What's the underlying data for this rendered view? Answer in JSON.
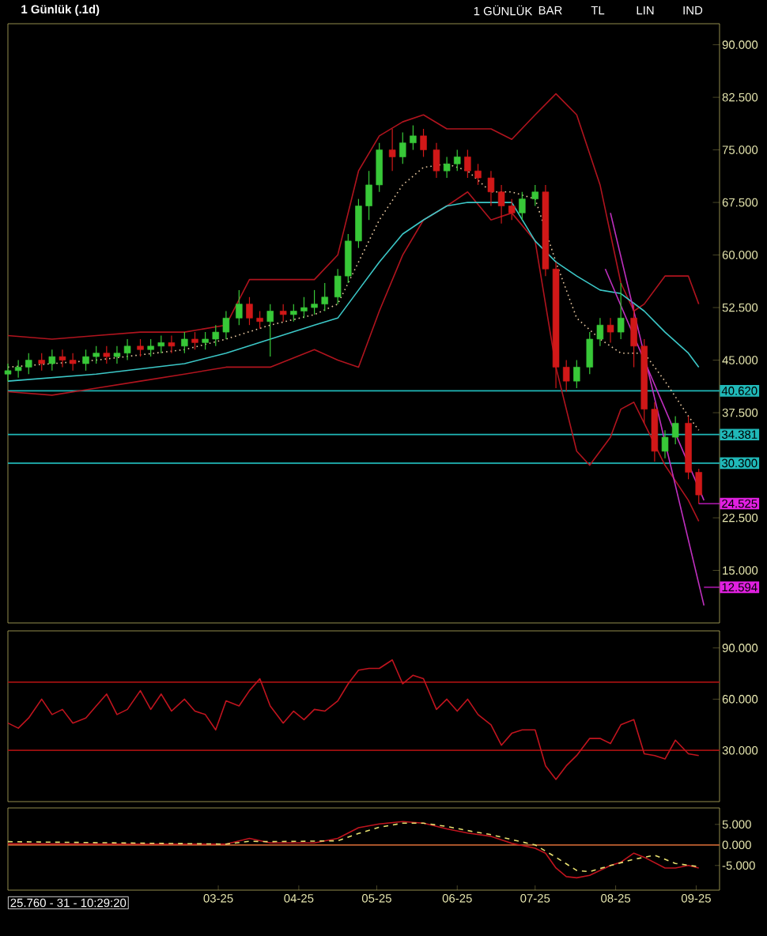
{
  "chart_data": [
    {
      "type": "candlestick",
      "title": "1 Günlük (.1d)",
      "annotations": [
        "1 GÜNLÜK",
        "BAR",
        "TL",
        "LIN",
        "IND",
        {
          "text": "24.525",
          "x": "2025-09-02",
          "y": 24.525
        },
        {
          "text": "12.594",
          "x": "2025-09-04",
          "y": 12.594
        }
      ],
      "x": [
        "2024-12-10",
        "2024-12-14",
        "2024-12-18",
        "2024-12-23",
        "2024-12-27",
        "2024-12-31",
        "2025-01-04",
        "2025-01-09",
        "2025-01-13",
        "2025-01-17",
        "2025-01-21",
        "2025-01-25",
        "2025-01-30",
        "2025-02-03",
        "2025-02-07",
        "2025-02-11",
        "2025-02-16",
        "2025-02-20",
        "2025-02-24",
        "2025-02-28",
        "2025-03-04",
        "2025-03-09",
        "2025-03-13",
        "2025-03-17",
        "2025-03-21",
        "2025-03-26",
        "2025-03-30",
        "2025-04-03",
        "2025-04-07",
        "2025-04-11",
        "2025-04-16",
        "2025-04-20",
        "2025-04-24",
        "2025-04-28",
        "2025-05-02",
        "2025-05-07",
        "2025-05-11",
        "2025-05-15",
        "2025-05-19",
        "2025-05-24",
        "2025-05-28",
        "2025-06-01",
        "2025-06-05",
        "2025-06-09",
        "2025-06-14",
        "2025-06-18",
        "2025-06-22",
        "2025-06-26",
        "2025-07-01",
        "2025-07-05",
        "2025-07-09",
        "2025-07-13",
        "2025-07-17",
        "2025-07-22",
        "2025-07-26",
        "2025-07-30",
        "2025-08-03",
        "2025-08-08",
        "2025-08-12",
        "2025-08-16",
        "2025-08-20",
        "2025-08-24",
        "2025-08-29",
        "2025-09-02"
      ],
      "ohlc": [
        [
          43,
          44.5,
          42,
          43.5
        ],
        [
          43.5,
          45,
          42.5,
          44
        ],
        [
          44,
          46,
          43,
          45
        ],
        [
          45,
          46,
          43.5,
          44.5
        ],
        [
          44.5,
          46.5,
          43.5,
          45.5
        ],
        [
          45.5,
          46.5,
          44,
          45
        ],
        [
          45,
          46,
          43.5,
          44.5
        ],
        [
          44.5,
          46.5,
          43.5,
          45.5
        ],
        [
          45.5,
          47,
          44.5,
          46
        ],
        [
          46,
          47,
          44.5,
          45.5
        ],
        [
          45.5,
          47,
          44.5,
          46
        ],
        [
          46,
          48,
          45,
          47
        ],
        [
          47,
          48,
          45.5,
          46.5
        ],
        [
          46.5,
          48,
          45.5,
          47
        ],
        [
          47,
          48.5,
          46,
          47.5
        ],
        [
          47.5,
          48.5,
          46,
          47
        ],
        [
          47,
          49,
          46,
          48
        ],
        [
          48,
          49,
          46.5,
          47.5
        ],
        [
          47.5,
          49,
          46.5,
          48
        ],
        [
          48,
          50,
          47,
          49
        ],
        [
          49,
          52,
          48,
          51
        ],
        [
          51,
          55,
          50,
          53
        ],
        [
          53,
          54,
          50,
          51
        ],
        [
          51,
          52,
          49.5,
          50.5
        ],
        [
          50.5,
          53,
          45.5,
          52
        ],
        [
          52,
          53,
          50.5,
          51.5
        ],
        [
          51.5,
          53,
          50.5,
          52
        ],
        [
          52,
          54,
          51,
          52.5
        ],
        [
          52.5,
          55,
          51.5,
          53
        ],
        [
          53,
          56,
          52,
          54
        ],
        [
          54,
          58,
          53,
          57
        ],
        [
          57,
          63,
          56,
          62
        ],
        [
          62,
          68,
          61,
          67
        ],
        [
          67,
          72,
          65,
          70
        ],
        [
          70,
          76,
          69,
          75
        ],
        [
          75,
          78,
          72,
          74
        ],
        [
          74,
          77.5,
          73,
          76
        ],
        [
          76,
          78.5,
          75,
          77
        ],
        [
          77,
          78,
          74,
          75
        ],
        [
          75,
          76,
          71,
          72
        ],
        [
          72,
          74,
          71,
          73
        ],
        [
          73,
          75,
          72,
          74
        ],
        [
          74,
          75,
          71,
          72
        ],
        [
          72,
          73,
          70,
          71
        ],
        [
          71,
          72,
          67,
          69
        ],
        [
          69,
          70,
          64.5,
          67
        ],
        [
          67,
          68,
          65,
          66
        ],
        [
          66,
          69,
          65,
          68
        ],
        [
          68,
          70,
          67,
          69
        ],
        [
          69,
          70,
          57,
          58
        ],
        [
          58,
          59,
          41,
          44
        ],
        [
          44,
          45,
          40.5,
          42
        ],
        [
          42,
          45,
          41,
          44
        ],
        [
          44,
          49,
          43,
          48
        ],
        [
          48,
          51,
          47,
          50
        ],
        [
          50,
          51,
          47.5,
          49
        ],
        [
          49,
          56,
          48,
          51
        ],
        [
          51,
          53,
          44,
          47
        ],
        [
          47,
          48,
          36,
          38
        ],
        [
          38,
          39,
          30.5,
          32
        ],
        [
          32,
          35,
          31,
          34
        ],
        [
          34,
          37,
          33,
          36
        ],
        [
          36,
          37,
          28,
          29
        ],
        [
          29,
          29.5,
          24.5,
          25.76
        ]
      ],
      "series": [
        {
          "type": "line",
          "color": "#b0141e",
          "x": [
            "2024-12-10",
            "2024-12-27",
            "2025-01-13",
            "2025-01-30",
            "2025-02-16",
            "2025-03-04",
            "2025-03-13",
            "2025-04-07",
            "2025-04-16",
            "2025-04-24",
            "2025-05-02",
            "2025-05-11",
            "2025-05-19",
            "2025-05-28",
            "2025-06-05",
            "2025-06-14",
            "2025-06-22",
            "2025-07-01",
            "2025-07-09",
            "2025-07-17",
            "2025-07-26",
            "2025-08-03",
            "2025-08-08",
            "2025-08-12",
            "2025-08-20",
            "2025-08-29",
            "2025-09-02"
          ],
          "values": [
            48.5,
            48,
            48.5,
            49,
            49,
            50,
            56.5,
            56.5,
            60,
            72,
            77,
            79,
            80,
            78,
            78,
            78,
            76.5,
            80,
            83,
            80,
            70,
            56,
            52,
            53,
            57,
            57,
            53
          ]
        },
        {
          "type": "line",
          "color": "#b0141e",
          "x": [
            "2024-12-10",
            "2024-12-27",
            "2025-01-13",
            "2025-01-30",
            "2025-02-16",
            "2025-03-04",
            "2025-03-21",
            "2025-04-07",
            "2025-04-16",
            "2025-04-24",
            "2025-05-02",
            "2025-05-11",
            "2025-05-19",
            "2025-05-28",
            "2025-06-05",
            "2025-06-14",
            "2025-06-22",
            "2025-07-01",
            "2025-07-09",
            "2025-07-17",
            "2025-07-22",
            "2025-07-30",
            "2025-08-03",
            "2025-08-08",
            "2025-08-12",
            "2025-08-20",
            "2025-08-29",
            "2025-09-02"
          ],
          "values": [
            40.5,
            40,
            41,
            42,
            43,
            44,
            44,
            46.5,
            45,
            44,
            52,
            60,
            65,
            67,
            69,
            65,
            66,
            62,
            44,
            32,
            30,
            34,
            38,
            39,
            36,
            30,
            25,
            22
          ]
        },
        {
          "type": "line",
          "color": "#e8c8a0",
          "line_style": "dotted",
          "x": [
            "2024-12-10",
            "2025-01-13",
            "2025-02-16",
            "2025-03-04",
            "2025-03-21",
            "2025-04-07",
            "2025-04-16",
            "2025-04-24",
            "2025-05-02",
            "2025-05-11",
            "2025-05-19",
            "2025-05-28",
            "2025-06-05",
            "2025-06-14",
            "2025-06-22",
            "2025-07-01",
            "2025-07-09",
            "2025-07-17",
            "2025-07-26",
            "2025-08-03",
            "2025-08-12",
            "2025-08-20",
            "2025-08-29",
            "2025-09-02"
          ],
          "values": [
            44,
            45,
            46.5,
            48,
            50,
            51.5,
            53,
            59,
            65,
            70,
            72.5,
            73,
            72,
            69,
            69,
            68,
            59,
            51,
            48,
            46,
            46,
            42,
            37,
            35
          ]
        },
        {
          "type": "line",
          "color": "#3cc8c8",
          "x": [
            "2024-12-10",
            "2025-01-13",
            "2025-02-16",
            "2025-03-04",
            "2025-03-21",
            "2025-04-07",
            "2025-04-16",
            "2025-04-24",
            "2025-05-02",
            "2025-05-11",
            "2025-05-19",
            "2025-05-28",
            "2025-06-05",
            "2025-06-14",
            "2025-06-22",
            "2025-07-01",
            "2025-07-09",
            "2025-07-17",
            "2025-07-26",
            "2025-08-03",
            "2025-08-12",
            "2025-08-20",
            "2025-08-29",
            "2025-09-02"
          ],
          "values": [
            42,
            43,
            44.5,
            46,
            48,
            50,
            51,
            55,
            59,
            63,
            65,
            67,
            67.5,
            67.5,
            67.5,
            62,
            59,
            57,
            55,
            54.5,
            52,
            49,
            46,
            44
          ]
        },
        {
          "type": "line",
          "color": "#c030c0",
          "x": [
            "2025-07-30",
            "2025-09-04"
          ],
          "values": [
            66,
            10
          ]
        },
        {
          "type": "line",
          "color": "#c030c0",
          "x": [
            "2025-07-28",
            "2025-09-04"
          ],
          "values": [
            58,
            25
          ]
        }
      ],
      "ref_lines": [
        {
          "axis": "y",
          "value": 40.62,
          "label": "40.620",
          "color": "#20b8b8"
        },
        {
          "axis": "y",
          "value": 34.381,
          "label": "34.381",
          "color": "#20b8b8"
        },
        {
          "axis": "y",
          "value": 30.3,
          "label": "30.300",
          "color": "#20b8b8"
        }
      ],
      "xlim": [
        "2024-12-10",
        "2025-09-10"
      ],
      "ylim": [
        7.5,
        93
      ],
      "yticks": [
        {
          "value": 15,
          "label": "15.000"
        },
        {
          "value": 22.5,
          "label": "22.500"
        },
        {
          "value": 37.5,
          "label": "37.500"
        },
        {
          "value": 45,
          "label": "45.000"
        },
        {
          "value": 52.5,
          "label": "52.500"
        },
        {
          "value": 60,
          "label": "60.000"
        },
        {
          "value": 67.5,
          "label": "67.500"
        },
        {
          "value": 75,
          "label": "75.000"
        },
        {
          "value": 82.5,
          "label": "82.500"
        },
        {
          "value": 90,
          "label": "90.000"
        }
      ],
      "tick_labels": "y"
    },
    {
      "type": "line",
      "x": [
        "2024-12-10",
        "2024-12-14",
        "2024-12-18",
        "2024-12-23",
        "2024-12-27",
        "2024-12-31",
        "2025-01-04",
        "2025-01-09",
        "2025-01-13",
        "2025-01-17",
        "2025-01-21",
        "2025-01-25",
        "2025-01-30",
        "2025-02-03",
        "2025-02-07",
        "2025-02-11",
        "2025-02-16",
        "2025-02-20",
        "2025-02-24",
        "2025-02-28",
        "2025-03-04",
        "2025-03-09",
        "2025-03-13",
        "2025-03-17",
        "2025-03-21",
        "2025-03-26",
        "2025-03-30",
        "2025-04-03",
        "2025-04-07",
        "2025-04-11",
        "2025-04-16",
        "2025-04-20",
        "2025-04-24",
        "2025-04-28",
        "2025-05-02",
        "2025-05-07",
        "2025-05-11",
        "2025-05-15",
        "2025-05-19",
        "2025-05-24",
        "2025-05-28",
        "2025-06-01",
        "2025-06-05",
        "2025-06-09",
        "2025-06-14",
        "2025-06-18",
        "2025-06-22",
        "2025-06-26",
        "2025-07-01",
        "2025-07-05",
        "2025-07-09",
        "2025-07-13",
        "2025-07-17",
        "2025-07-22",
        "2025-07-26",
        "2025-07-30",
        "2025-08-03",
        "2025-08-08",
        "2025-08-12",
        "2025-08-16",
        "2025-08-20",
        "2025-08-24",
        "2025-08-29",
        "2025-09-02"
      ],
      "series": [
        {
          "color": "#c0141e",
          "values": [
            46,
            43,
            49,
            60,
            51,
            54,
            46,
            49,
            56,
            63,
            51,
            54,
            65,
            54,
            63,
            53,
            60,
            53,
            51,
            42,
            59,
            56,
            65,
            72,
            56,
            46,
            53,
            48,
            54,
            53,
            59,
            69,
            77,
            78,
            78,
            83,
            69,
            74,
            72,
            54,
            60,
            53,
            60,
            51,
            45,
            33,
            40,
            42,
            42,
            21,
            13,
            21,
            27,
            37,
            37,
            34,
            45,
            48,
            28,
            27,
            25,
            36,
            28,
            27
          ]
        }
      ],
      "ref_lines": [
        {
          "axis": "y",
          "value": 70,
          "color": "#a01010"
        },
        {
          "axis": "y",
          "value": 30,
          "color": "#a01010"
        }
      ],
      "xlim": [
        "2024-12-10",
        "2025-09-10"
      ],
      "ylim": [
        0,
        100
      ],
      "yticks": [
        {
          "value": 30,
          "label": "30.000"
        },
        {
          "value": 60,
          "label": "60.000"
        },
        {
          "value": 90,
          "label": "90.000"
        }
      ],
      "tick_labels": "y"
    },
    {
      "type": "line",
      "annotations": [
        "25.760 - 31 - 10:29:20"
      ],
      "series": [
        {
          "color": "#c0141e",
          "x": [
            "2024-12-10",
            "2025-01-21",
            "2025-03-04",
            "2025-03-13",
            "2025-03-21",
            "2025-04-07",
            "2025-04-16",
            "2025-04-24",
            "2025-05-02",
            "2025-05-11",
            "2025-05-19",
            "2025-05-28",
            "2025-06-05",
            "2025-06-14",
            "2025-06-22",
            "2025-07-01",
            "2025-07-05",
            "2025-07-09",
            "2025-07-13",
            "2025-07-17",
            "2025-07-22",
            "2025-07-30",
            "2025-08-03",
            "2025-08-08",
            "2025-08-12",
            "2025-08-20",
            "2025-08-24",
            "2025-08-29",
            "2025-09-02"
          ],
          "values": [
            0.3,
            0.2,
            0.2,
            1.6,
            0.5,
            0.5,
            1.6,
            4.2,
            5.1,
            5.7,
            5.3,
            3.9,
            2.9,
            2.1,
            0.4,
            -0.8,
            -2,
            -5.6,
            -7.7,
            -8,
            -7.4,
            -5,
            -4.2,
            -2,
            -3,
            -5.6,
            -5.6,
            -5,
            -5.6
          ]
        },
        {
          "color": "#e8e070",
          "line_style": "dashed",
          "x": [
            "2024-12-10",
            "2025-03-04",
            "2025-03-13",
            "2025-03-21",
            "2025-04-16",
            "2025-04-24",
            "2025-05-02",
            "2025-05-11",
            "2025-05-19",
            "2025-05-28",
            "2025-06-05",
            "2025-06-14",
            "2025-06-22",
            "2025-07-01",
            "2025-07-09",
            "2025-07-17",
            "2025-07-22",
            "2025-07-30",
            "2025-08-08",
            "2025-08-16",
            "2025-08-24",
            "2025-09-02"
          ],
          "values": [
            0.8,
            0.2,
            0.9,
            0.8,
            1.0,
            2.8,
            4.3,
            5.3,
            5.3,
            4.5,
            3.5,
            2.5,
            1.3,
            0,
            -3,
            -6.2,
            -6.5,
            -5,
            -3.5,
            -2.5,
            -4.5,
            -5.3
          ]
        }
      ],
      "ref_lines": [
        {
          "axis": "y",
          "value": 0,
          "color": "#c06030"
        }
      ],
      "xlim": [
        "2024-12-10",
        "2025-09-10"
      ],
      "ylim": [
        -11,
        9
      ],
      "xticks": [
        {
          "value": "2025-03-01",
          "label": "03-25"
        },
        {
          "value": "2025-04-01",
          "label": "04-25"
        },
        {
          "value": "2025-05-01",
          "label": "05-25"
        },
        {
          "value": "2025-06-01",
          "label": "06-25"
        },
        {
          "value": "2025-07-01",
          "label": "07-25"
        },
        {
          "value": "2025-08-01",
          "label": "08-25"
        },
        {
          "value": "2025-09-01",
          "label": "09-25"
        }
      ],
      "yticks": [
        {
          "value": -5,
          "label": "-5.000"
        },
        {
          "value": 0,
          "label": "0.000"
        },
        {
          "value": 5,
          "label": "5.000"
        }
      ]
    }
  ]
}
